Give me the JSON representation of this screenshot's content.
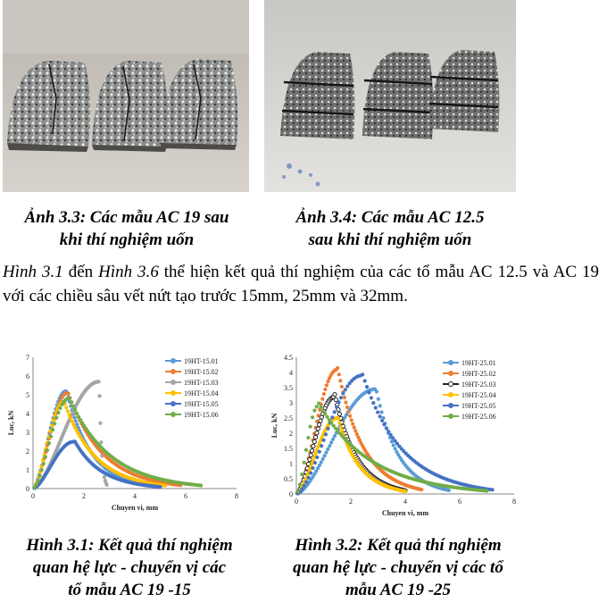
{
  "captions": {
    "photo_3_3": "Ảnh 3.3: Các mẫu AC 19 sau khi thí nghiệm uốn",
    "photo_3_3_line1": "Ảnh 3.3: Các mẫu AC 19 sau",
    "photo_3_3_line2": "khi thí nghiệm uốn",
    "photo_3_4_line1": "Ảnh 3.4: Các mẫu AC 12.5",
    "photo_3_4_line2": "sau khi thí nghiệm uốn",
    "fig_3_1_line1": "Hình 3.1: Kết quả thí nghiệm",
    "fig_3_1_line2": "quan hệ lực - chuyển vị các",
    "fig_3_1_line3": "tổ mẫu AC 19 -15",
    "fig_3_2_line1": "Hình 3.2: Kết quả thí nghiệm",
    "fig_3_2_line2": "quan hệ lực - chuyển vị các tổ",
    "fig_3_2_line3": "mẫu AC 19 -25"
  },
  "paragraph": {
    "ref1": "Hình 3.1",
    "t1": " đến ",
    "ref2": "Hình 3.6",
    "t2": " thể hiện kết quả thí nghiệm của các tổ mẫu AC 12.5 và AC 19 với các chiều sâu vết nứt tạo trước 15mm, 25mm và 32mm."
  },
  "colors": {
    "s1": "#5b9bd5",
    "s2": "#ed7d31",
    "s3": "#a5a5a5",
    "s4": "#ffc000",
    "s5": "#4472c4",
    "s6": "#70ad47",
    "s3_b": "#222222"
  },
  "chart_data": [
    {
      "type": "scatter",
      "xlabel": "Chuyen vi, mm",
      "ylabel": "Luc, kN",
      "xlim": [
        0,
        8
      ],
      "ylim": [
        0,
        7
      ],
      "xticks": [
        0,
        2,
        4,
        6,
        8
      ],
      "yticks": [
        0,
        1,
        2,
        3,
        4,
        5,
        6,
        7
      ],
      "legend": "top-right",
      "series": [
        {
          "name": "19HT-15.01",
          "peak_x": 1.3,
          "peak_y": 5.2,
          "end_x": 4.5
        },
        {
          "name": "19HT-15.02",
          "peak_x": 1.35,
          "peak_y": 5.1,
          "end_x": 5.8
        },
        {
          "name": "19HT-15.03",
          "peak_x": 2.6,
          "peak_y": 5.7,
          "end_x": 2.9
        },
        {
          "name": "19HT-15.04",
          "peak_x": 1.2,
          "peak_y": 4.6,
          "end_x": 5.2
        },
        {
          "name": "19HT-15.05",
          "peak_x": 1.6,
          "peak_y": 2.5,
          "end_x": 5.0
        },
        {
          "name": "19HT-15.06",
          "peak_x": 1.4,
          "peak_y": 4.8,
          "end_x": 6.6
        }
      ]
    },
    {
      "type": "scatter",
      "xlabel": "Chuyen vi, mm",
      "ylabel": "Luc, kN",
      "xlim": [
        0,
        8
      ],
      "ylim": [
        0,
        4.5
      ],
      "xticks": [
        0,
        2,
        4,
        6,
        8
      ],
      "yticks": [
        0,
        0.5,
        1,
        1.5,
        2,
        2.5,
        3,
        3.5,
        4,
        4.5
      ],
      "legend": "top-right",
      "series": [
        {
          "name": "19HT-25.01",
          "peak_x": 2.9,
          "peak_y": 3.45,
          "end_x": 5.6
        },
        {
          "name": "19HT-25.02",
          "peak_x": 1.5,
          "peak_y": 4.1,
          "end_x": 4.6
        },
        {
          "name": "19HT-25.03",
          "peak_x": 1.4,
          "peak_y": 3.2,
          "end_x": 4.0
        },
        {
          "name": "19HT-25.04",
          "peak_x": 1.5,
          "peak_y": 2.5,
          "end_x": 4.0
        },
        {
          "name": "19HT-25.05",
          "peak_x": 2.4,
          "peak_y": 3.9,
          "end_x": 7.2
        },
        {
          "name": "19HT-25.06",
          "peak_x": 0.8,
          "peak_y": 2.9,
          "end_x": 7.0
        }
      ]
    }
  ]
}
